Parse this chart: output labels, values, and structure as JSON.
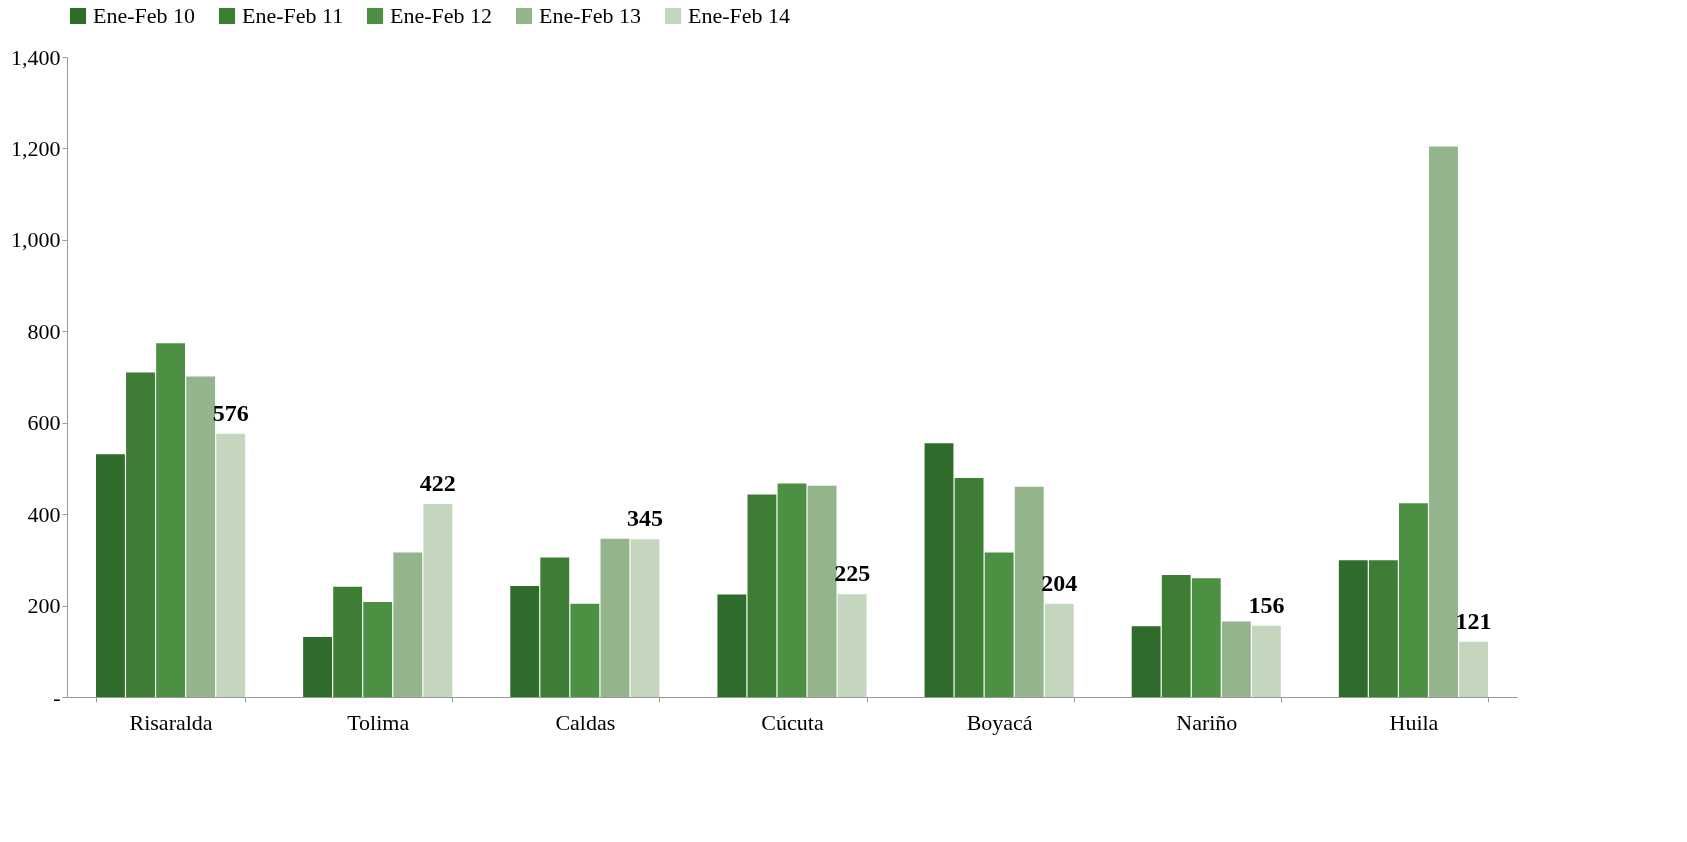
{
  "chart_data": {
    "type": "bar",
    "categories": [
      "Risaralda",
      "Tolima",
      "Caldas",
      "Cúcuta",
      "Boyacá",
      "Nariño",
      "Huila"
    ],
    "series": [
      {
        "name": "Ene-Feb 10",
        "color": "#2f6b2a",
        "values": [
          531,
          131,
          243,
          224,
          555,
          155,
          299
        ]
      },
      {
        "name": "Ene-Feb 11",
        "color": "#3d7d34",
        "values": [
          710,
          241,
          305,
          443,
          479,
          267,
          299
        ]
      },
      {
        "name": "Ene-Feb 12",
        "color": "#4c9043",
        "values": [
          774,
          208,
          204,
          467,
          316,
          260,
          424
        ]
      },
      {
        "name": "Ene-Feb 13",
        "color": "#94b48b",
        "values": [
          701,
          316,
          346,
          462,
          460,
          165,
          1204
        ]
      },
      {
        "name": "Ene-Feb 14",
        "color": "#c4d7be",
        "values": [
          576,
          422,
          345,
          225,
          204,
          156,
          121
        ],
        "value_labels": [
          "576",
          "422",
          "345",
          "225",
          "204",
          "156",
          "121"
        ]
      }
    ],
    "ylim": [
      0,
      1400
    ],
    "yticks": [
      {
        "value": 0,
        "label": "-"
      },
      200,
      400,
      600,
      800,
      {
        "value": 1000,
        "label": "1,000"
      },
      {
        "value": 1200,
        "label": "1,200"
      },
      {
        "value": 1400,
        "label": "1,400"
      }
    ],
    "grid": false,
    "legend": "top"
  }
}
